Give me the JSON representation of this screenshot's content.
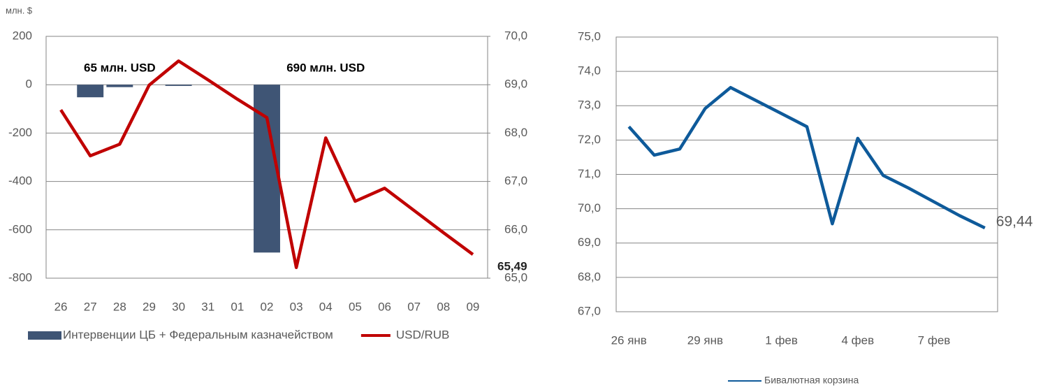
{
  "chart_data": [
    {
      "type": "bar-line",
      "y_axis_label": "млн. $",
      "categories": [
        "26",
        "27",
        "28",
        "29",
        "30",
        "31",
        "01",
        "02",
        "03",
        "04",
        "05",
        "06",
        "07",
        "08",
        "09"
      ],
      "ylim": [
        -800,
        200
      ],
      "yticks": [
        200,
        0,
        -200,
        -400,
        -600,
        -800
      ],
      "y2lim": [
        65,
        70
      ],
      "y2ticks": [
        {
          "value": 70,
          "label": "70,0"
        },
        {
          "value": 69,
          "label": "69,0"
        },
        {
          "value": 68,
          "label": "68,0"
        },
        {
          "value": 67,
          "label": "67,0"
        },
        {
          "value": 66,
          "label": "66,0"
        },
        {
          "value": 65,
          "label": "65,0"
        }
      ],
      "grid": true,
      "legend": "bottom",
      "series": [
        {
          "name": "Интервенции ЦБ + Федеральным казначейством",
          "kind": "bar",
          "color": "#3f5575",
          "values": [
            null,
            -52,
            -10,
            null,
            -5,
            null,
            null,
            -694,
            null,
            null,
            null,
            null,
            null,
            null,
            null
          ]
        },
        {
          "name": "USD/RUB",
          "kind": "line",
          "axis": "y2",
          "color": "#c00000",
          "values": [
            68.48,
            67.53,
            67.77,
            68.99,
            69.49,
            69.1,
            68.7,
            68.32,
            65.22,
            67.9,
            66.59,
            66.86,
            66.4,
            65.94,
            65.49
          ],
          "value_labels": [
            null,
            null,
            null,
            null,
            null,
            null,
            null,
            null,
            null,
            null,
            null,
            null,
            null,
            null,
            "65,49"
          ]
        }
      ],
      "annotations": [
        {
          "text": "65 млн. USD",
          "category": 2
        },
        {
          "text": "690 млн. USD",
          "category": 9
        }
      ]
    },
    {
      "type": "line",
      "categories": [
        "26 янв",
        null,
        null,
        "29 янв",
        null,
        null,
        "1 фев",
        null,
        null,
        "4 фев",
        null,
        null,
        "7 фев",
        null,
        null
      ],
      "ylim": [
        67,
        75
      ],
      "yticks": [
        {
          "value": 75,
          "label": "75,0"
        },
        {
          "value": 74,
          "label": "74,0"
        },
        {
          "value": 73,
          "label": "73,0"
        },
        {
          "value": 72,
          "label": "72,0"
        },
        {
          "value": 71,
          "label": "71,0"
        },
        {
          "value": 70,
          "label": "70,0"
        },
        {
          "value": 69,
          "label": "69,0"
        },
        {
          "value": 68,
          "label": "68,0"
        },
        {
          "value": 67,
          "label": "67,0"
        }
      ],
      "grid": true,
      "legend": "bottom",
      "series": [
        {
          "name": "Бивалютная корзина",
          "color": "#0e5a9a",
          "values": [
            72.39,
            71.56,
            71.74,
            72.92,
            73.53,
            73.15,
            72.77,
            72.39,
            69.56,
            72.05,
            70.97,
            70.6,
            70.2,
            69.8,
            69.44
          ],
          "value_labels": [
            null,
            null,
            null,
            null,
            null,
            null,
            null,
            null,
            null,
            null,
            null,
            null,
            null,
            null,
            "69,44"
          ]
        }
      ]
    }
  ]
}
